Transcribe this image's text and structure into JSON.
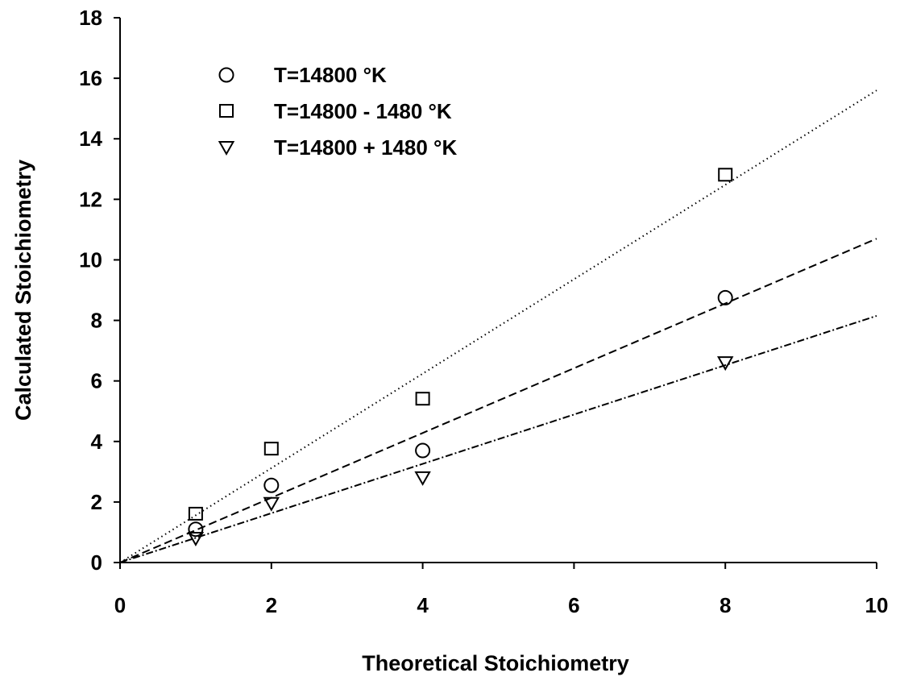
{
  "chart_data": {
    "type": "scatter",
    "title": "",
    "xlabel": "Theoretical Stoichiometry",
    "ylabel": "Calculated Stoichiometry",
    "xlim": [
      0,
      10
    ],
    "ylim": [
      0,
      18
    ],
    "xticks": [
      0,
      2,
      4,
      6,
      8,
      10
    ],
    "yticks": [
      0,
      2,
      4,
      6,
      8,
      10,
      12,
      14,
      16,
      18
    ],
    "grid": false,
    "legend_position": "top-left",
    "series": [
      {
        "name": "T=14800 °K",
        "marker": "circle",
        "x": [
          1,
          2,
          4,
          8
        ],
        "y": [
          1.1,
          2.55,
          3.7,
          8.75
        ],
        "fit": {
          "slope": 1.07,
          "style": "dashed"
        }
      },
      {
        "name": "T=14800 - 1480 °K",
        "marker": "square",
        "x": [
          1,
          2,
          4,
          8
        ],
        "y": [
          1.6,
          3.75,
          5.4,
          12.8
        ],
        "fit": {
          "slope": 1.56,
          "style": "dotted"
        }
      },
      {
        "name": "T=14800 + 1480 °K",
        "marker": "triangle-down",
        "x": [
          1,
          2,
          4,
          8
        ],
        "y": [
          0.8,
          1.95,
          2.8,
          6.6
        ],
        "fit": {
          "slope": 0.815,
          "style": "dash-dot"
        }
      }
    ]
  }
}
